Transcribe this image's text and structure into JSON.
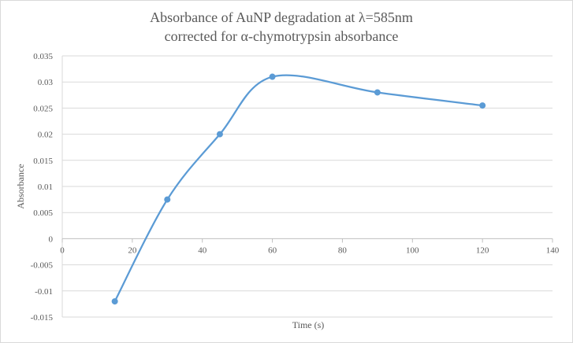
{
  "chart_data": {
    "type": "scatter",
    "style": "smooth lines with markers",
    "title": [
      "Absorbance of AuNP degradation at λ=585nm",
      "corrected for α-chymotrypsin absorbance"
    ],
    "xlabel": "Time  (s)",
    "ylabel": "Absorbance",
    "xlim": [
      0,
      140
    ],
    "ylim": [
      -0.015,
      0.035
    ],
    "xticks": [
      0,
      20,
      40,
      60,
      80,
      100,
      120,
      140
    ],
    "yticks": [
      -0.015,
      -0.01,
      -0.005,
      0,
      0.005,
      0.01,
      0.015,
      0.02,
      0.025,
      0.03,
      0.035
    ],
    "xtick_labels": [
      "0",
      "20",
      "40",
      "60",
      "80",
      "100",
      "120",
      "140"
    ],
    "ytick_labels": [
      "-0.015",
      "-0.01",
      "-0.005",
      "0",
      "0.005",
      "0.01",
      "0.015",
      "0.02",
      "0.025",
      "0.03",
      "0.035"
    ],
    "grid": "horizontal",
    "legend": "none",
    "series": [
      {
        "color": "#5b9bd5",
        "x": [
          15,
          30,
          45,
          60,
          90,
          120
        ],
        "y": [
          -0.012,
          0.0075,
          0.02,
          0.031,
          0.028,
          0.0255
        ]
      }
    ]
  }
}
